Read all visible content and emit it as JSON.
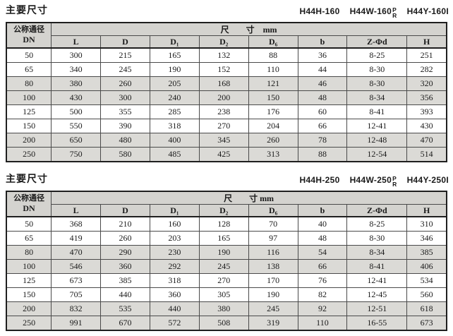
{
  "colors": {
    "header_bg": "#d4d3cf",
    "shaded_row_bg": "#dbdad6",
    "inner_border": "#4a4a4a",
    "outer_border": "#1f1f1f"
  },
  "tables": [
    {
      "section_title": "主要尺寸",
      "models": [
        "H44H-160",
        "H44W-160",
        "H44Y-160I"
      ],
      "variant_top": "P",
      "variant_bottom": "R",
      "header": {
        "dn_label": "公称通径",
        "dn_sub": "DN",
        "size_label": "尺　　寸　mm",
        "columns": [
          "L",
          "D",
          "D₁",
          "D₂",
          "D₆",
          "b",
          "Z-Φd",
          "H"
        ]
      },
      "rows": [
        {
          "dn": "50",
          "values": [
            "300",
            "215",
            "165",
            "132",
            "88",
            "36",
            "8-25",
            "251"
          ]
        },
        {
          "dn": "65",
          "values": [
            "340",
            "245",
            "190",
            "152",
            "110",
            "44",
            "8-30",
            "282"
          ]
        },
        {
          "dn": "80",
          "values": [
            "380",
            "260",
            "205",
            "168",
            "121",
            "46",
            "8-30",
            "320"
          ]
        },
        {
          "dn": "100",
          "values": [
            "430",
            "300",
            "240",
            "200",
            "150",
            "48",
            "8-34",
            "356"
          ]
        },
        {
          "dn": "125",
          "values": [
            "500",
            "355",
            "285",
            "238",
            "176",
            "60",
            "8-41",
            "393"
          ]
        },
        {
          "dn": "150",
          "values": [
            "550",
            "390",
            "318",
            "270",
            "204",
            "66",
            "12-41",
            "430"
          ]
        },
        {
          "dn": "200",
          "values": [
            "650",
            "480",
            "400",
            "345",
            "260",
            "78",
            "12-48",
            "470"
          ]
        },
        {
          "dn": "250",
          "values": [
            "750",
            "580",
            "485",
            "425",
            "313",
            "88",
            "12-54",
            "514"
          ]
        }
      ]
    },
    {
      "section_title": "主要尺寸",
      "models": [
        "H44H-250",
        "H44W-250",
        "H44Y-250I"
      ],
      "variant_top": "P",
      "variant_bottom": "R",
      "header": {
        "dn_label": "公称通径",
        "dn_sub": "DN",
        "size_label": "尺　　寸 mm",
        "columns": [
          "L",
          "D",
          "D₁",
          "D₂",
          "D₆",
          "b",
          "Z-Φd",
          "H"
        ]
      },
      "rows": [
        {
          "dn": "50",
          "values": [
            "368",
            "210",
            "160",
            "128",
            "70",
            "40",
            "8-25",
            "310"
          ]
        },
        {
          "dn": "65",
          "values": [
            "419",
            "260",
            "203",
            "165",
            "97",
            "48",
            "8-30",
            "346"
          ]
        },
        {
          "dn": "80",
          "values": [
            "470",
            "290",
            "230",
            "190",
            "116",
            "54",
            "8-34",
            "385"
          ]
        },
        {
          "dn": "100",
          "values": [
            "546",
            "360",
            "292",
            "245",
            "138",
            "66",
            "8-41",
            "406"
          ]
        },
        {
          "dn": "125",
          "values": [
            "673",
            "385",
            "318",
            "270",
            "170",
            "76",
            "12-41",
            "534"
          ]
        },
        {
          "dn": "150",
          "values": [
            "705",
            "440",
            "360",
            "305",
            "190",
            "82",
            "12-45",
            "560"
          ]
        },
        {
          "dn": "200",
          "values": [
            "832",
            "535",
            "440",
            "380",
            "245",
            "92",
            "12-51",
            "618"
          ]
        },
        {
          "dn": "250",
          "values": [
            "991",
            "670",
            "572",
            "508",
            "319",
            "110",
            "16-55",
            "673"
          ]
        }
      ]
    }
  ]
}
